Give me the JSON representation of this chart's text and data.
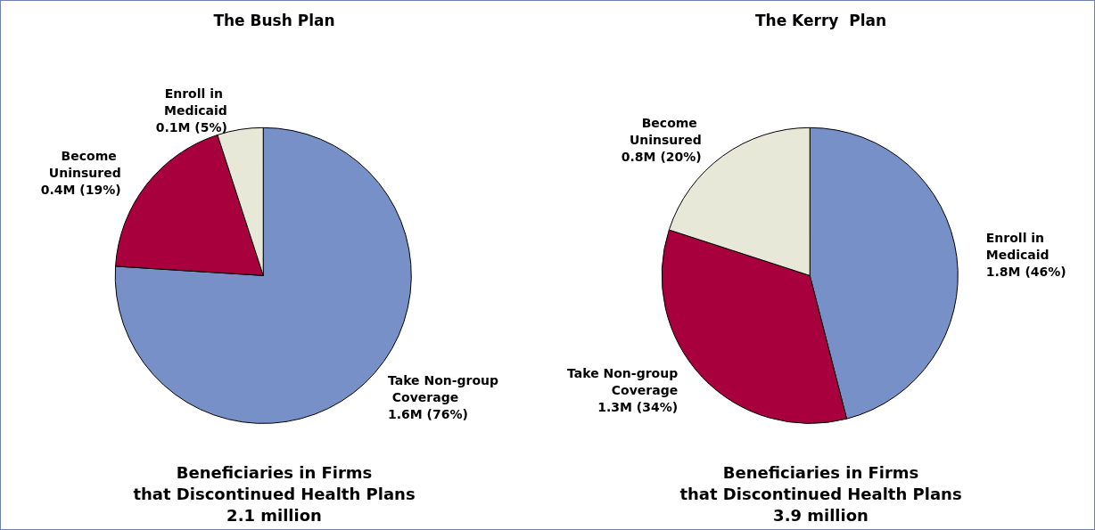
{
  "chart_data": [
    {
      "type": "pie",
      "title": "The Bush Plan",
      "categories": [
        "Take Non-group Coverage",
        "Become Uninsured",
        "Enroll in Medicaid"
      ],
      "values": [
        76,
        19,
        5
      ],
      "value_labels": [
        "1.6M (76%)",
        "0.4M (19%)",
        "0.1M (5%)"
      ],
      "colors": [
        "#7890c8",
        "#a8003c",
        "#e8e8d8"
      ],
      "annotations": [
        "Beneficiaries in Firms\nthat Discontinued Health Plans\n2.1 million"
      ]
    },
    {
      "type": "pie",
      "title": "The Kerry  Plan",
      "categories": [
        "Enroll in Medicaid",
        "Take Non-group Coverage",
        "Become Uninsured"
      ],
      "values": [
        46,
        34,
        20
      ],
      "value_labels": [
        "1.8M (46%)",
        "1.3M (34%)",
        "0.8M (20%)"
      ],
      "colors": [
        "#7890c8",
        "#a8003c",
        "#e8e8d8"
      ],
      "annotations": [
        "Beneficiaries in Firms\nthat Discontinued Health Plans\n3.9 million"
      ]
    }
  ]
}
